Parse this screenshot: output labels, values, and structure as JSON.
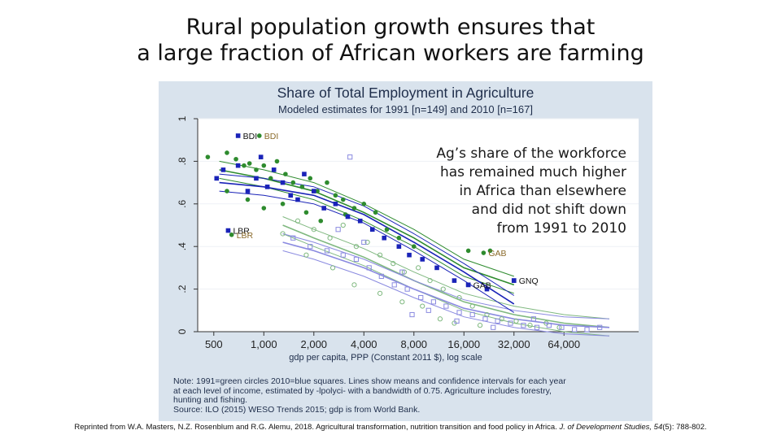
{
  "slide": {
    "title_line1": "Rural population growth ensures that",
    "title_line2": "a large fraction of African workers are farming"
  },
  "callout": {
    "lines": [
      "Ag’s share of the workforce",
      "has remained much higher",
      "in Africa than elsewhere",
      "and did not shift down",
      "from 1991 to 2010"
    ]
  },
  "note": {
    "lines": [
      "Note: 1991=green circles 2010=blue squares. Lines show means and confidence intervals for each year",
      "at each level of income, estimated by -lpolyci- with a bandwidth of 0.75. Agriculture includes forestry,",
      "hunting and fishing.",
      "Source: ILO (2015) WESO Trends 2015; gdp is from World Bank."
    ]
  },
  "citation": {
    "before": "Reprinted from W.A. Masters, N.Z. Rosenblum and R.G. Alemu, 2018. Agricultural transformation, nutrition transition and food policy in Africa. ",
    "journal": "J. of Development Studies, 54",
    "after": "(5): 788-802."
  },
  "colors": {
    "africa_1991": "#2e8b2e",
    "africa_2010": "#1a23b8",
    "other_1991": "#7fb87f",
    "other_2010": "#8a8ae0",
    "label_1991": "#8a6a2a",
    "label_2010": "#111111",
    "background": "#d9e3ed",
    "plot_bg": "#ffffff"
  },
  "chart_data": {
    "type": "scatter",
    "title": "Share of Total Employment in Agriculture",
    "subtitle": "Modeled estimates for 1991 [n=149] and 2010 [n=167]",
    "xlabel": "gdp per capita, PPP (Constant 2011 $), log scale",
    "ylabel": "",
    "x_scale": "log",
    "xlim": [
      400,
      180000
    ],
    "ylim": [
      0,
      1
    ],
    "x_ticks": [
      500,
      1000,
      2000,
      4000,
      8000,
      16000,
      32000,
      64000
    ],
    "x_tick_labels": [
      "500",
      "1,000",
      "2,000",
      "4,000",
      "8,000",
      "16,000",
      "32,000",
      "64,000"
    ],
    "y_ticks": [
      0,
      0.2,
      0.4,
      0.6,
      0.8,
      1
    ],
    "y_tick_labels": [
      "0",
      ".2",
      ".4",
      ".6",
      ".8",
      "1"
    ],
    "grid": true,
    "series": [
      {
        "name": "1991",
        "marker": "circle",
        "africa": [
          [
            460,
            0.82
          ],
          [
            600,
            0.84
          ],
          [
            680,
            0.81
          ],
          [
            760,
            0.78
          ],
          [
            820,
            0.79
          ],
          [
            900,
            0.76
          ],
          [
            1000,
            0.78
          ],
          [
            1100,
            0.72
          ],
          [
            1200,
            0.8
          ],
          [
            1350,
            0.74
          ],
          [
            1500,
            0.7
          ],
          [
            1700,
            0.68
          ],
          [
            1900,
            0.72
          ],
          [
            2100,
            0.66
          ],
          [
            2400,
            0.7
          ],
          [
            2700,
            0.64
          ],
          [
            3000,
            0.62
          ],
          [
            3500,
            0.58
          ],
          [
            4000,
            0.6
          ],
          [
            4700,
            0.56
          ],
          [
            5500,
            0.48
          ],
          [
            6500,
            0.44
          ],
          [
            8000,
            0.4
          ],
          [
            17000,
            0.38
          ],
          [
            23000,
            0.38
          ],
          [
            600,
            0.66
          ],
          [
            800,
            0.62
          ],
          [
            1000,
            0.58
          ],
          [
            1300,
            0.6
          ],
          [
            1800,
            0.56
          ],
          [
            2200,
            0.52
          ],
          [
            3100,
            0.55
          ]
        ],
        "other": [
          [
            1300,
            0.46
          ],
          [
            1600,
            0.52
          ],
          [
            2000,
            0.48
          ],
          [
            2500,
            0.44
          ],
          [
            3000,
            0.5
          ],
          [
            3600,
            0.4
          ],
          [
            4200,
            0.42
          ],
          [
            5000,
            0.36
          ],
          [
            6000,
            0.32
          ],
          [
            7000,
            0.28
          ],
          [
            8500,
            0.3
          ],
          [
            10000,
            0.24
          ],
          [
            12000,
            0.2
          ],
          [
            15000,
            0.16
          ],
          [
            18000,
            0.12
          ],
          [
            22000,
            0.08
          ],
          [
            27000,
            0.06
          ],
          [
            33000,
            0.05
          ],
          [
            40000,
            0.03
          ],
          [
            50000,
            0.04
          ],
          [
            60000,
            0.02
          ],
          [
            3500,
            0.22
          ],
          [
            5000,
            0.18
          ],
          [
            6800,
            0.14
          ],
          [
            9000,
            0.12
          ],
          [
            2600,
            0.3
          ],
          [
            1800,
            0.36
          ],
          [
            11500,
            0.06
          ],
          [
            14000,
            0.04
          ],
          [
            20000,
            0.03
          ]
        ]
      },
      {
        "name": "2010",
        "marker": "square",
        "africa": [
          [
            520,
            0.72
          ],
          [
            570,
            0.76
          ],
          [
            700,
            0.78
          ],
          [
            800,
            0.66
          ],
          [
            900,
            0.72
          ],
          [
            1050,
            0.68
          ],
          [
            1150,
            0.76
          ],
          [
            1300,
            0.7
          ],
          [
            1450,
            0.64
          ],
          [
            1600,
            0.62
          ],
          [
            1750,
            0.74
          ],
          [
            2000,
            0.66
          ],
          [
            2300,
            0.58
          ],
          [
            2700,
            0.6
          ],
          [
            3200,
            0.54
          ],
          [
            3800,
            0.52
          ],
          [
            4500,
            0.48
          ],
          [
            5300,
            0.44
          ],
          [
            6500,
            0.4
          ],
          [
            7500,
            0.36
          ],
          [
            9000,
            0.34
          ],
          [
            11000,
            0.3
          ],
          [
            14000,
            0.24
          ],
          [
            17000,
            0.22
          ],
          [
            22000,
            0.2
          ],
          [
            32000,
            0.24
          ],
          [
            960,
            0.82
          ]
        ],
        "other": [
          [
            1500,
            0.44
          ],
          [
            1900,
            0.4
          ],
          [
            2400,
            0.38
          ],
          [
            3000,
            0.36
          ],
          [
            3600,
            0.34
          ],
          [
            4300,
            0.3
          ],
          [
            5100,
            0.26
          ],
          [
            6100,
            0.22
          ],
          [
            7300,
            0.2
          ],
          [
            8800,
            0.16
          ],
          [
            10500,
            0.14
          ],
          [
            12500,
            0.12
          ],
          [
            15000,
            0.09
          ],
          [
            18000,
            0.08
          ],
          [
            21500,
            0.06
          ],
          [
            25500,
            0.05
          ],
          [
            30500,
            0.04
          ],
          [
            36500,
            0.03
          ],
          [
            44000,
            0.02
          ],
          [
            52000,
            0.03
          ],
          [
            62000,
            0.02
          ],
          [
            74000,
            0.01
          ],
          [
            88000,
            0.01
          ],
          [
            2800,
            0.48
          ],
          [
            4000,
            0.42
          ],
          [
            6800,
            0.28
          ],
          [
            9800,
            0.1
          ],
          [
            14500,
            0.05
          ],
          [
            24000,
            0.02
          ],
          [
            42000,
            0.06
          ],
          [
            105000,
            0.02
          ],
          [
            7800,
            0.08
          ],
          [
            3300,
            0.82
          ]
        ]
      }
    ],
    "fit_lines": {
      "africa_1991": [
        [
          540,
          0.76
        ],
        [
          1000,
          0.72
        ],
        [
          2000,
          0.66
        ],
        [
          4000,
          0.56
        ],
        [
          8000,
          0.44
        ],
        [
          16000,
          0.3
        ],
        [
          32000,
          0.22
        ]
      ],
      "africa_2010": [
        [
          540,
          0.7
        ],
        [
          1000,
          0.68
        ],
        [
          2000,
          0.64
        ],
        [
          4000,
          0.55
        ],
        [
          8000,
          0.42
        ],
        [
          16000,
          0.28
        ],
        [
          32000,
          0.13
        ]
      ],
      "other_1991": [
        [
          1300,
          0.5
        ],
        [
          2000,
          0.44
        ],
        [
          4000,
          0.35
        ],
        [
          8000,
          0.24
        ],
        [
          16000,
          0.14
        ],
        [
          32000,
          0.08
        ],
        [
          64000,
          0.04
        ],
        [
          120000,
          0.02
        ]
      ],
      "other_2010": [
        [
          1300,
          0.42
        ],
        [
          2000,
          0.38
        ],
        [
          4000,
          0.3
        ],
        [
          8000,
          0.2
        ],
        [
          16000,
          0.11
        ],
        [
          32000,
          0.06
        ],
        [
          64000,
          0.03
        ],
        [
          120000,
          0.02
        ]
      ]
    },
    "annotations": [
      {
        "text": "BDI",
        "year": "2010",
        "x": 700,
        "y": 0.92
      },
      {
        "text": "BDI",
        "year": "1991",
        "x": 940,
        "y": 0.92
      },
      {
        "text": "LBR",
        "year": "2010",
        "x": 610,
        "y": 0.475
      },
      {
        "text": "LBR",
        "year": "1991",
        "x": 640,
        "y": 0.455
      },
      {
        "text": "GAB",
        "year": "1991",
        "x": 21000,
        "y": 0.37
      },
      {
        "text": "GAB",
        "year": "2010",
        "x": 17000,
        "y": 0.22
      },
      {
        "text": "GNQ",
        "year": "2010",
        "x": 32000,
        "y": 0.24
      }
    ]
  }
}
